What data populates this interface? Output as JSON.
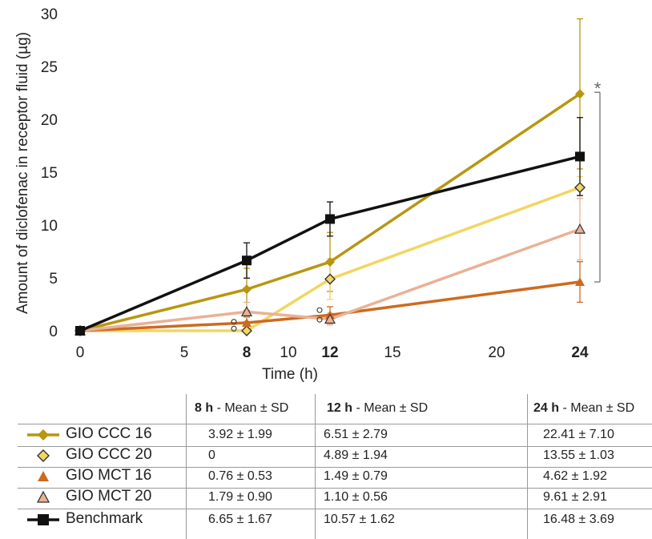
{
  "chart_data": {
    "type": "line",
    "xlabel": "Time (h)",
    "ylabel": "Amount of diclofenac in receptor fluid (µg)",
    "xlim": [
      0,
      24
    ],
    "ylim": [
      0,
      30
    ],
    "x_ticks": [
      "0",
      "5",
      "8",
      "10",
      "12",
      "15",
      "20",
      "24"
    ],
    "x_ticks_bold": [
      "8",
      "12",
      "24"
    ],
    "y_ticks": [
      "0",
      "5",
      "10",
      "15",
      "20",
      "25",
      "30"
    ],
    "grid": false,
    "significance_marker": "*",
    "x": [
      0,
      8,
      12,
      24
    ],
    "series": [
      {
        "name": "GIO CCC 16",
        "marker": "diamond-filled",
        "color": "#b8960f",
        "values": [
          0,
          3.92,
          6.51,
          22.41
        ],
        "sd": [
          0,
          1.99,
          2.79,
          7.1
        ]
      },
      {
        "name": "GIO CCC 20",
        "marker": "diamond-open",
        "color": "#f2d660",
        "values": [
          0,
          0,
          4.89,
          13.55
        ],
        "sd": [
          0,
          0,
          1.94,
          1.03
        ]
      },
      {
        "name": "GIO MCT 16",
        "marker": "triangle-filled",
        "color": "#cc6b1e",
        "values": [
          0,
          0.76,
          1.49,
          4.62
        ],
        "sd": [
          0,
          0.53,
          0.79,
          1.92
        ]
      },
      {
        "name": "GIO MCT 20",
        "marker": "triangle-open",
        "color": "#eab196",
        "values": [
          0,
          1.79,
          1.1,
          9.61
        ],
        "sd": [
          0,
          0.9,
          0.56,
          2.91
        ]
      },
      {
        "name": "Benchmark",
        "marker": "square-filled",
        "color": "#111111",
        "values": [
          0,
          6.65,
          10.57,
          16.48
        ],
        "sd": [
          0,
          1.67,
          1.62,
          3.69
        ]
      }
    ]
  },
  "table": {
    "headers": [
      {
        "bold": "8 h",
        "rest": " - Mean ± SD"
      },
      {
        "bold": "12 h",
        "rest": " - Mean ± SD"
      },
      {
        "bold": "24 h",
        "rest": " - Mean ± SD"
      }
    ],
    "rows": [
      {
        "label": "GIO CCC 16",
        "cells": [
          "3.92 ± 1.99",
          "6.51 ± 2.79",
          "22.41 ± 7.10"
        ]
      },
      {
        "label": "GIO CCC 20",
        "cells": [
          "0",
          "4.89 ± 1.94",
          "13.55 ± 1.03"
        ]
      },
      {
        "label": "GIO MCT 16",
        "cells": [
          "0.76 ± 0.53",
          "1.49 ± 0.79",
          "4.62 ± 1.92"
        ]
      },
      {
        "label": "GIO MCT 20",
        "cells": [
          "1.79 ± 0.90",
          "1.10 ± 0.56",
          "9.61 ± 2.91"
        ]
      },
      {
        "label": "Benchmark",
        "cells": [
          "6.65 ± 1.67",
          "10.57 ± 1.62",
          "16.48 ± 3.69"
        ]
      }
    ]
  }
}
